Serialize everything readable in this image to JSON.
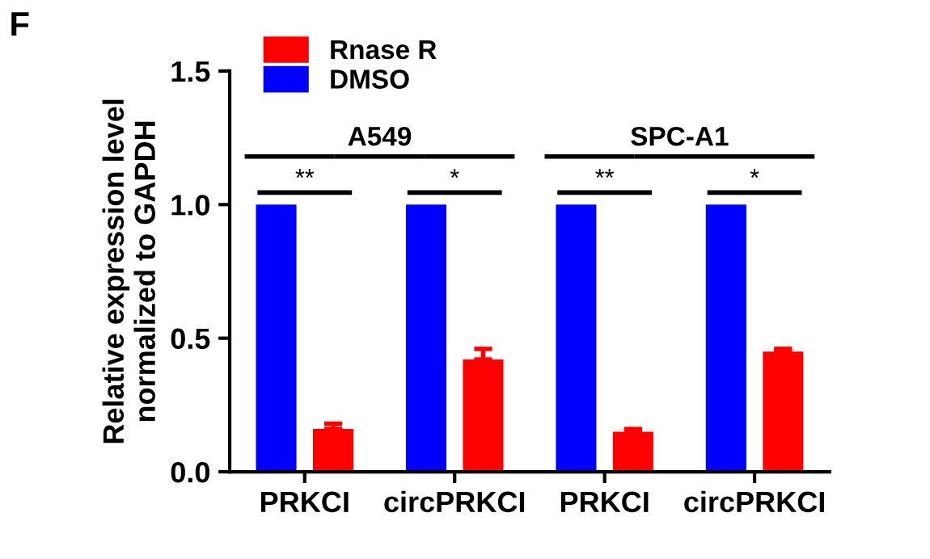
{
  "chart_data": {
    "type": "bar",
    "ylabel": "Relative expression level\nnormalized to GAPDH",
    "categories": [
      "PRKCI",
      "circPRKCI",
      "PRKCI",
      "circPRKCI"
    ],
    "series": [
      {
        "name": "DMSO",
        "color": "#0000ff",
        "values": [
          1.0,
          1.0,
          1.0,
          1.0
        ]
      },
      {
        "name": "Rnase R",
        "color": "#ff0000",
        "values": [
          0.16,
          0.42,
          0.15,
          0.45
        ],
        "errors": [
          [
            0.16,
            0.18
          ],
          [
            0.42,
            0.46
          ],
          [
            0.15,
            0.16
          ],
          [
            0.45,
            0.46
          ]
        ]
      }
    ],
    "ylim": [
      0,
      1.5
    ],
    "yticks": [
      {
        "value": 0,
        "label": "0.0"
      },
      0.5,
      {
        "value": 1,
        "label": "1.0"
      },
      1.5
    ],
    "grid": false,
    "legend": "top left",
    "annotations": [
      "F",
      "A549",
      "SPC-A1",
      "**",
      "*",
      "**",
      "*"
    ]
  }
}
